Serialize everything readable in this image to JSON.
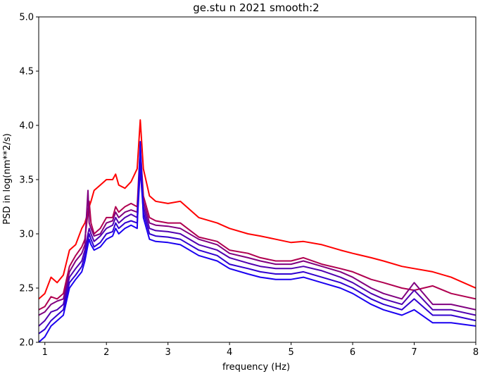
{
  "chart_data": {
    "type": "line",
    "title": "ge.stu n 2021 smooth:2",
    "xlabel": "frequency (Hz)",
    "ylabel": "PSD in log(nm**2/s)",
    "xlim": [
      0.9,
      8.0
    ],
    "ylim": [
      2.0,
      5.0
    ],
    "x_ticks": [
      1,
      2,
      3,
      4,
      5,
      6,
      7,
      8
    ],
    "y_ticks": [
      2.0,
      2.5,
      3.0,
      3.5,
      4.0,
      4.5,
      5.0
    ],
    "x_tick_labels": [
      "1",
      "2",
      "3",
      "4",
      "5",
      "6",
      "7",
      "8"
    ],
    "y_tick_labels": [
      "2.0",
      "2.5",
      "3.0",
      "3.5",
      "4.0",
      "4.5",
      "5.0"
    ],
    "grid": false,
    "legend": "none",
    "x": [
      0.9,
      1.0,
      1.1,
      1.2,
      1.3,
      1.4,
      1.5,
      1.6,
      1.65,
      1.7,
      1.72,
      1.75,
      1.8,
      1.9,
      2.0,
      2.1,
      2.15,
      2.2,
      2.3,
      2.4,
      2.5,
      2.55,
      2.6,
      2.7,
      2.8,
      3.0,
      3.2,
      3.5,
      3.8,
      4.0,
      4.3,
      4.5,
      4.75,
      5.0,
      5.2,
      5.5,
      5.8,
      6.0,
      6.3,
      6.5,
      6.8,
      7.0,
      7.3,
      7.6,
      8.0
    ],
    "series": [
      {
        "color": "#ff0000",
        "values": [
          2.4,
          2.45,
          2.6,
          2.55,
          2.62,
          2.85,
          2.9,
          3.05,
          3.1,
          3.2,
          3.25,
          3.3,
          3.4,
          3.45,
          3.5,
          3.5,
          3.55,
          3.45,
          3.42,
          3.48,
          3.6,
          4.05,
          3.6,
          3.35,
          3.3,
          3.28,
          3.3,
          3.15,
          3.1,
          3.05,
          3.0,
          2.98,
          2.95,
          2.92,
          2.93,
          2.9,
          2.85,
          2.82,
          2.78,
          2.75,
          2.7,
          2.68,
          2.65,
          2.6,
          2.5
        ]
      },
      {
        "color": "#b00050",
        "values": [
          2.3,
          2.33,
          2.42,
          2.4,
          2.45,
          2.7,
          2.8,
          2.88,
          2.95,
          3.2,
          3.3,
          3.1,
          3.0,
          3.05,
          3.15,
          3.15,
          3.25,
          3.2,
          3.25,
          3.28,
          3.25,
          3.8,
          3.35,
          3.15,
          3.12,
          3.1,
          3.1,
          2.97,
          2.93,
          2.85,
          2.82,
          2.78,
          2.75,
          2.75,
          2.78,
          2.72,
          2.68,
          2.65,
          2.58,
          2.55,
          2.5,
          2.48,
          2.52,
          2.45,
          2.4
        ]
      },
      {
        "color": "#800080",
        "values": [
          2.25,
          2.28,
          2.35,
          2.38,
          2.4,
          2.65,
          2.75,
          2.82,
          2.9,
          3.4,
          3.1,
          3.05,
          2.98,
          3.0,
          3.1,
          3.12,
          3.2,
          3.15,
          3.2,
          3.22,
          3.2,
          3.7,
          3.3,
          3.1,
          3.08,
          3.07,
          3.05,
          2.95,
          2.9,
          2.82,
          2.78,
          2.75,
          2.72,
          2.72,
          2.75,
          2.7,
          2.65,
          2.6,
          2.5,
          2.45,
          2.4,
          2.55,
          2.35,
          2.35,
          2.3
        ]
      },
      {
        "color": "#5000b0",
        "values": [
          2.15,
          2.2,
          2.28,
          2.3,
          2.35,
          2.6,
          2.68,
          2.75,
          2.85,
          3.0,
          3.05,
          3.0,
          2.93,
          2.98,
          3.05,
          3.08,
          3.15,
          3.1,
          3.15,
          3.18,
          3.15,
          3.65,
          3.25,
          3.05,
          3.03,
          3.02,
          3.0,
          2.9,
          2.85,
          2.78,
          2.73,
          2.7,
          2.68,
          2.68,
          2.7,
          2.66,
          2.6,
          2.55,
          2.45,
          2.4,
          2.35,
          2.48,
          2.3,
          2.3,
          2.25
        ]
      },
      {
        "color": "#3000d0",
        "values": [
          2.08,
          2.12,
          2.2,
          2.25,
          2.3,
          2.55,
          2.62,
          2.7,
          2.8,
          2.95,
          3.0,
          2.95,
          2.88,
          2.92,
          3.0,
          3.02,
          3.1,
          3.05,
          3.1,
          3.12,
          3.1,
          3.6,
          3.2,
          3.0,
          2.98,
          2.97,
          2.95,
          2.85,
          2.8,
          2.72,
          2.68,
          2.65,
          2.63,
          2.63,
          2.65,
          2.6,
          2.55,
          2.5,
          2.4,
          2.35,
          2.3,
          2.4,
          2.25,
          2.25,
          2.2
        ]
      },
      {
        "color": "#1a00f0",
        "values": [
          2.0,
          2.05,
          2.15,
          2.2,
          2.25,
          2.5,
          2.58,
          2.65,
          2.75,
          2.9,
          2.95,
          2.9,
          2.85,
          2.88,
          2.95,
          2.98,
          3.05,
          3.0,
          3.05,
          3.08,
          3.05,
          3.85,
          3.15,
          2.95,
          2.93,
          2.92,
          2.9,
          2.8,
          2.75,
          2.68,
          2.63,
          2.6,
          2.58,
          2.58,
          2.6,
          2.55,
          2.5,
          2.45,
          2.35,
          2.3,
          2.25,
          2.3,
          2.18,
          2.18,
          2.15
        ]
      }
    ]
  }
}
